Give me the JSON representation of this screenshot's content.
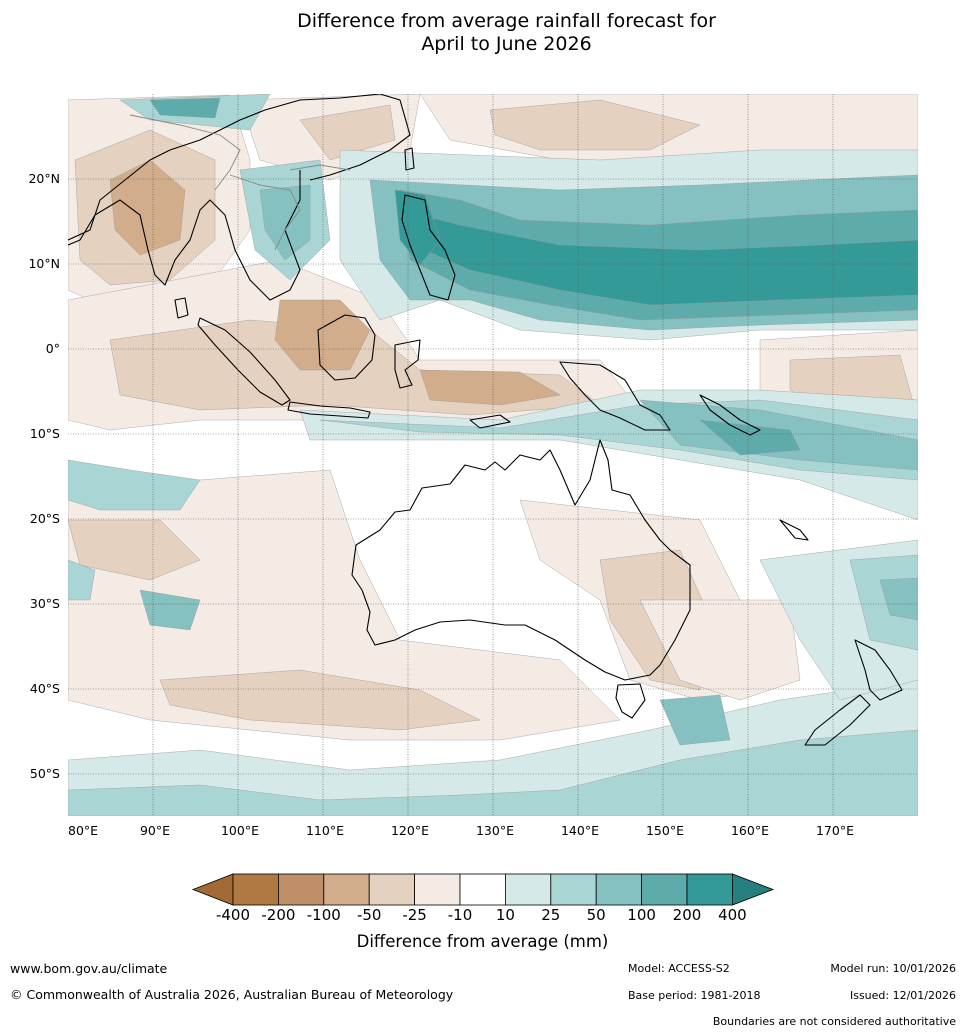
{
  "title": {
    "line1": "Difference from average rainfall forecast for",
    "line2": "April to June 2026"
  },
  "map": {
    "longitude_labels": [
      "80°E",
      "90°E",
      "100°E",
      "110°E",
      "120°E",
      "130°E",
      "140°E",
      "150°E",
      "160°E",
      "170°E"
    ],
    "latitude_labels": [
      "20°N",
      "10°N",
      "0°",
      "10°S",
      "20°S",
      "30°S",
      "40°S",
      "50°S"
    ]
  },
  "colorbar": {
    "title": "Difference from average (mm)",
    "labels": [
      "-400",
      "-200",
      "-100",
      "-50",
      "-25",
      "-10",
      "10",
      "25",
      "50",
      "100",
      "200",
      "400"
    ],
    "colors": [
      "#a46a35",
      "#b07843",
      "#bf9068",
      "#d2ad8c",
      "#e5d1bf",
      "#f5ebe5",
      "#ffffff",
      "#d5e9e8",
      "#a9d5d4",
      "#84c1c0",
      "#5eabab",
      "#349a98",
      "#257f7e"
    ],
    "brown_colors": [
      "#b07843",
      "#bf9068",
      "#d2ad8c",
      "#e5d1bf",
      "#f5ebe5"
    ],
    "teal_colors": [
      "#d5e9e8",
      "#a9d5d4",
      "#84c1c0",
      "#5eabab",
      "#349a98"
    ]
  },
  "footer": {
    "url": "www.bom.gov.au/climate",
    "copyright": "© Commonwealth of Australia 2026, Australian Bureau of Meteorology",
    "model": "Model: ACCESS-S2",
    "base_period": "Base period: 1981-2018",
    "model_run": "Model run: 10/01/2026",
    "issued": "Issued: 12/01/2026",
    "disclaimer": "Boundaries are not considered authoritative"
  }
}
